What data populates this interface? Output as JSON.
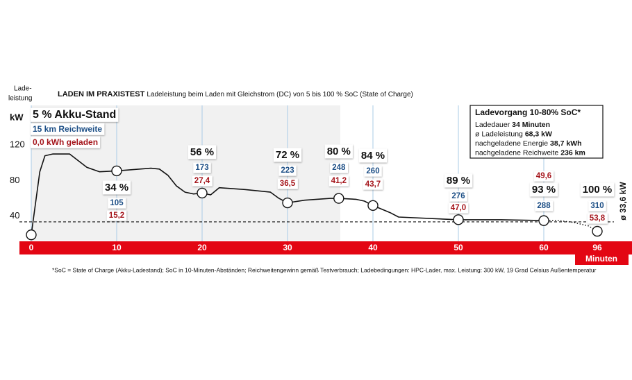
{
  "chart_data": {
    "type": "line",
    "title": "LADEN IM PRAXISTEST",
    "subtitle": "Ladeleistung beim Laden mit Gleichstrom (DC) von 5 bis 100 % SoC (State of Charge)",
    "ylabel": [
      "Lade-",
      "leistung"
    ],
    "yunit": "kW",
    "xlabel": "Minuten",
    "xlim": [
      0,
      96
    ],
    "xticks": [
      0,
      10,
      20,
      30,
      40,
      50,
      60,
      96
    ],
    "ylim": [
      12,
      160
    ],
    "yticks": [
      40,
      80,
      120
    ],
    "series": [
      {
        "color": "#111111",
        "style": "solid",
        "x": [
          0,
          1,
          1.6,
          2.5,
          4.5,
          6.5,
          8,
          10,
          14,
          15,
          16,
          17,
          18,
          19,
          20,
          21,
          22,
          25,
          28,
          29,
          30,
          32,
          35,
          36,
          38,
          39,
          40,
          42,
          43,
          50,
          55,
          60
        ],
        "values": [
          19,
          90,
          108,
          110,
          110,
          95,
          90,
          91,
          94,
          93,
          86,
          74,
          67,
          65,
          66,
          64,
          72,
          70,
          67,
          60,
          55,
          58,
          60,
          60,
          59,
          57,
          52,
          44,
          39,
          36,
          36,
          35
        ]
      },
      {
        "color": "#111111",
        "style": "dotted",
        "x": [
          60,
          70,
          80,
          90,
          96
        ],
        "values": [
          35,
          35,
          33,
          29,
          23
        ]
      }
    ],
    "average": {
      "value": 33.6,
      "label": "ø 33,6 kW",
      "color": "#111111"
    },
    "soc_points": {
      "x": [
        0,
        10,
        20,
        30,
        36,
        40,
        50,
        60,
        96
      ],
      "y": [
        19,
        91,
        66,
        55,
        60,
        52,
        36,
        35,
        23
      ],
      "soc": {
        "values": [
          5,
          34,
          56,
          72,
          80,
          84,
          89,
          93,
          100
        ],
        "value_labels": [
          "5 % Akku-Stand",
          "34 %",
          "56 %",
          "72 %",
          "80 %",
          "84 %",
          "89 %",
          "93 %",
          "100 %"
        ]
      },
      "range_km": {
        "color": "#1d4f86",
        "values": [
          15,
          105,
          173,
          223,
          248,
          260,
          276,
          288,
          310
        ],
        "value_labels": [
          "15 km Reichweite",
          "105",
          "173",
          "223",
          "248",
          "260",
          "276",
          "288",
          "310"
        ]
      },
      "energy_kwh": {
        "color": "#a5161c",
        "values": [
          0.0,
          15.2,
          27.4,
          36.5,
          41.2,
          43.7,
          47.0,
          49.6,
          53.8
        ],
        "value_labels": [
          "0,0 kWh geladen",
          "15,2",
          "27,4",
          "36,5",
          "41,2",
          "43,7",
          "47,0",
          "49,6",
          "53,8"
        ]
      }
    },
    "info_box": {
      "title": "Ladevorgang 10-80% SoC*",
      "lines": [
        {
          "label": "Ladedauer",
          "value": "34 Minuten"
        },
        {
          "label": "ø Ladeleistung",
          "value": "68,3 kW"
        },
        {
          "label": "nachgeladene Energie",
          "value": "38,7 kWh"
        },
        {
          "label": "nachgeladene Reichweite",
          "value": "236 km"
        }
      ]
    },
    "axis_color": "#e30613",
    "footnote": "*SoC = State of Charge (Akku-Ladestand); SoC in 10-Minuten-Abständen; Reichweitengewinn gemäß Testverbrauch; Ladebedingungen: HPC-Lader, max. Leistung: 300 kW, 19 Grad Celsius Außentemperatur"
  }
}
